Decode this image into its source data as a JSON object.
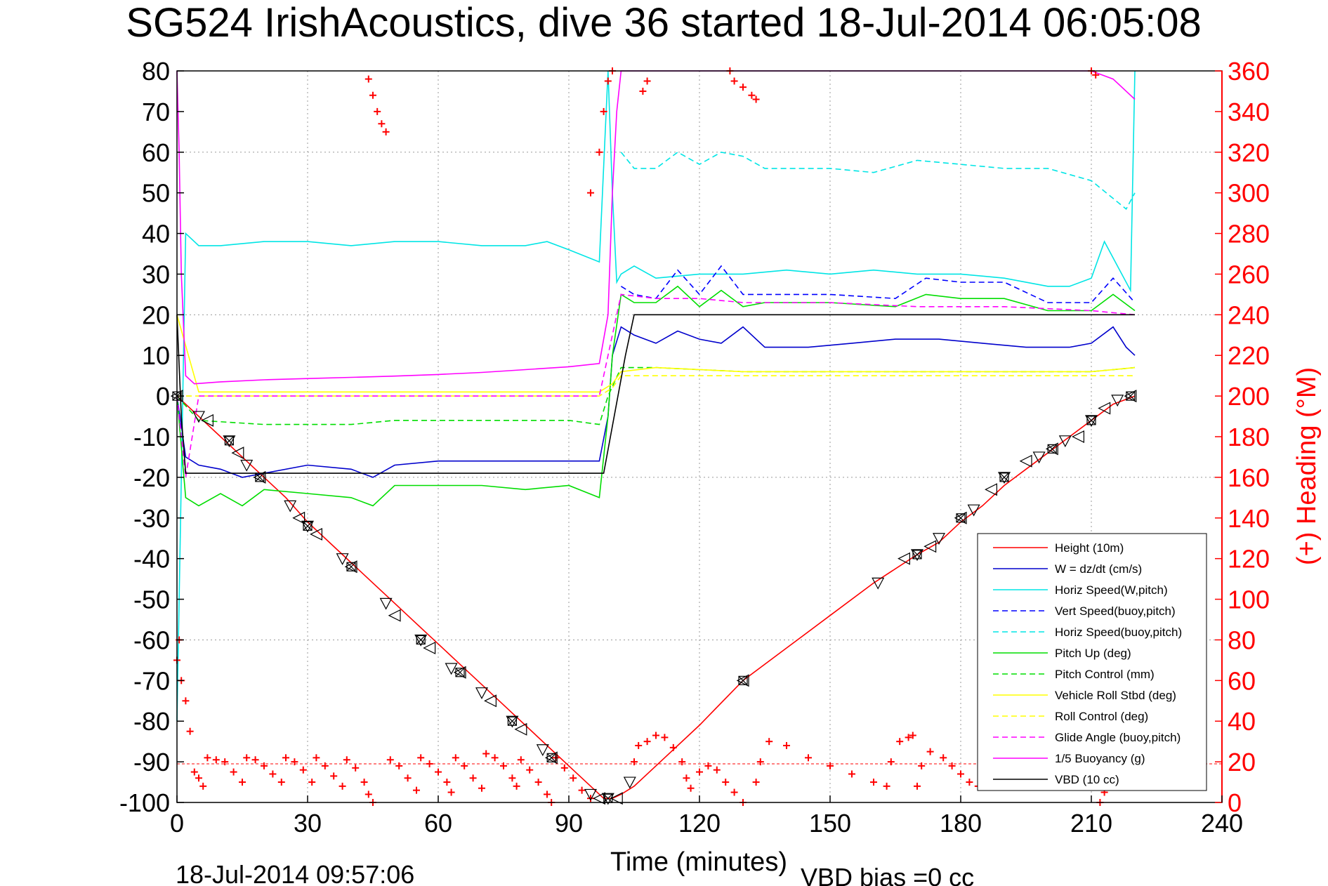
{
  "chart_data": {
    "type": "line",
    "title": "SG524 IrishAcoustics, dive 36 started 18-Jul-2014 06:05:08",
    "xlabel": "Time (minutes)",
    "ylabel_right": "(+) Heading (°M)",
    "xlim": [
      0,
      240
    ],
    "ylim_left": [
      -100,
      80
    ],
    "ylim_right": [
      0,
      360
    ],
    "xticks": [
      0,
      30,
      60,
      90,
      120,
      150,
      180,
      210,
      240
    ],
    "yticks_left": [
      80,
      70,
      60,
      50,
      40,
      30,
      20,
      10,
      0,
      -10,
      -20,
      -30,
      -40,
      -50,
      -60,
      -70,
      -80,
      -90,
      -100
    ],
    "yticks_right": [
      360,
      340,
      320,
      300,
      280,
      260,
      240,
      220,
      200,
      180,
      160,
      140,
      120,
      100,
      80,
      60,
      40,
      20,
      0
    ],
    "grid": true,
    "legend_position": "lower-right",
    "reference_line_y": -90.5,
    "footer_left": "18-Jul-2014 09:57:06",
    "footer_right": "VBD bias =0 cc",
    "colors": {
      "red": "#ff0000",
      "blue": "#0000cc",
      "cyan": "#00e5e5",
      "green": "#00dd00",
      "yellow": "#ffff00",
      "magenta": "#ff00ff",
      "black": "#000000"
    },
    "series": [
      {
        "name": "Height (10m)",
        "color": "#ff0000",
        "style": "solid",
        "x": [
          0,
          5,
          10,
          15,
          20,
          25,
          30,
          35,
          40,
          45,
          50,
          55,
          60,
          65,
          70,
          75,
          80,
          85,
          90,
          95,
          98,
          100,
          102,
          105,
          110,
          120,
          130,
          140,
          150,
          160,
          170,
          175,
          180,
          185,
          190,
          195,
          200,
          205,
          210,
          215,
          220
        ],
        "y": [
          0,
          -5,
          -10,
          -15,
          -20,
          -25,
          -31,
          -36,
          -41,
          -46,
          -51,
          -56,
          -61,
          -66,
          -71,
          -76,
          -81,
          -86,
          -91,
          -96,
          -99,
          -99,
          -98,
          -96,
          -91,
          -81,
          -70,
          -62,
          -54,
          -46,
          -39,
          -36,
          -31,
          -27,
          -22,
          -18,
          -14,
          -10,
          -6,
          -2,
          0
        ]
      },
      {
        "name": "W = dz/dt (cm/s)",
        "color": "#0000cc",
        "style": "solid",
        "x": [
          0,
          2,
          5,
          10,
          15,
          20,
          30,
          40,
          45,
          50,
          60,
          70,
          80,
          90,
          97,
          99,
          100,
          102,
          105,
          110,
          115,
          120,
          125,
          130,
          135,
          145,
          155,
          165,
          175,
          185,
          195,
          205,
          210,
          215,
          218,
          220
        ],
        "y": [
          0,
          -15,
          -17,
          -18,
          -20,
          -19,
          -17,
          -18,
          -20,
          -17,
          -16,
          -16,
          -16,
          -16,
          -16,
          -5,
          10,
          17,
          15,
          13,
          16,
          14,
          13,
          17,
          12,
          12,
          13,
          14,
          14,
          13,
          12,
          12,
          13,
          17,
          12,
          10
        ]
      },
      {
        "name": "Horiz Speed(W,pitch)",
        "color": "#00e5e5",
        "style": "solid",
        "x": [
          0,
          2,
          5,
          10,
          20,
          30,
          40,
          50,
          60,
          70,
          80,
          85,
          90,
          97,
          99,
          100,
          101,
          102,
          105,
          110,
          120,
          130,
          140,
          150,
          160,
          170,
          180,
          190,
          200,
          205,
          210,
          213,
          216,
          219,
          220
        ],
        "y": [
          -80,
          40,
          37,
          37,
          38,
          38,
          37,
          38,
          38,
          37,
          37,
          38,
          36,
          33,
          80,
          50,
          28,
          30,
          32,
          29,
          30,
          30,
          31,
          30,
          31,
          30,
          30,
          29,
          27,
          27,
          29,
          38,
          32,
          26,
          80
        ]
      },
      {
        "name": "Vert Speed(buoy,pitch)",
        "color": "#0000ff",
        "style": "dashed",
        "x": [
          102,
          105,
          110,
          115,
          120,
          125,
          130,
          135,
          150,
          165,
          172,
          180,
          190,
          200,
          210,
          215,
          220
        ],
        "y": [
          27,
          25,
          24,
          31,
          25,
          32,
          25,
          25,
          25,
          24,
          29,
          28,
          28,
          23,
          23,
          29,
          23
        ]
      },
      {
        "name": "Horiz Speed(buoy,pitch)",
        "color": "#00e5e5",
        "style": "dashed",
        "x": [
          102,
          105,
          110,
          115,
          120,
          125,
          130,
          135,
          150,
          160,
          170,
          180,
          190,
          200,
          210,
          218,
          220
        ],
        "y": [
          60,
          56,
          56,
          60,
          57,
          60,
          59,
          56,
          56,
          55,
          58,
          57,
          56,
          56,
          53,
          46,
          50
        ]
      },
      {
        "name": "Pitch Up (deg)",
        "color": "#00dd00",
        "style": "solid",
        "x": [
          0,
          2,
          5,
          10,
          15,
          20,
          30,
          40,
          45,
          50,
          60,
          70,
          80,
          90,
          97,
          99,
          100,
          102,
          105,
          110,
          115,
          120,
          125,
          130,
          135,
          150,
          165,
          172,
          180,
          190,
          200,
          210,
          215,
          220
        ],
        "y": [
          0,
          -25,
          -27,
          -24,
          -27,
          -23,
          -24,
          -25,
          -27,
          -22,
          -22,
          -22,
          -23,
          -22,
          -25,
          -5,
          10,
          25,
          23,
          23,
          27,
          22,
          26,
          22,
          23,
          23,
          22,
          25,
          24,
          24,
          21,
          21,
          25,
          21
        ]
      },
      {
        "name": "Pitch Control (mm)",
        "color": "#00dd00",
        "style": "dashed",
        "x": [
          0,
          5,
          20,
          40,
          50,
          60,
          70,
          80,
          90,
          97,
          99,
          102,
          110,
          130,
          150,
          170,
          190,
          210,
          220
        ],
        "y": [
          0,
          -6,
          -7,
          -7,
          -6,
          -6,
          -6,
          -6,
          -6,
          -7,
          0,
          7,
          7,
          6,
          6,
          6,
          6,
          6,
          7
        ]
      },
      {
        "name": "Vehicle Roll Stbd (deg)",
        "color": "#ffff00",
        "style": "solid",
        "x": [
          0,
          5,
          10,
          20,
          40,
          60,
          80,
          97,
          100,
          102,
          110,
          130,
          150,
          170,
          190,
          210,
          220
        ],
        "y": [
          20,
          1,
          1,
          1,
          1,
          1,
          1,
          1,
          3,
          6,
          7,
          6,
          6,
          6,
          6,
          6,
          7
        ]
      },
      {
        "name": "Roll Control (deg)",
        "color": "#ffff00",
        "style": "dashed",
        "x": [
          0,
          10,
          20,
          40,
          60,
          80,
          97,
          100,
          102,
          110,
          130,
          150,
          170,
          190,
          210,
          220
        ],
        "y": [
          0,
          0,
          0,
          0,
          0,
          0,
          0,
          2,
          5,
          5,
          5,
          5,
          5,
          5,
          5,
          5
        ]
      },
      {
        "name": "Glide Angle (buoy,pitch)",
        "color": "#ff00ff",
        "style": "dashed",
        "x": [
          0,
          2,
          5,
          20,
          40,
          60,
          80,
          97,
          99,
          102,
          110,
          120,
          130,
          150,
          170,
          190,
          210,
          220
        ],
        "y": [
          0,
          -20,
          0,
          0,
          0,
          0,
          0,
          0,
          10,
          25,
          24,
          24,
          23,
          23,
          22,
          22,
          21,
          20
        ]
      },
      {
        "name": "1/5 Buoyancy (g)",
        "color": "#ff00ff",
        "style": "solid",
        "x": [
          0,
          0.5,
          1,
          2,
          4,
          10,
          20,
          30,
          40,
          50,
          60,
          70,
          80,
          90,
          97,
          99,
          100,
          101,
          102,
          104,
          106,
          110,
          150,
          200,
          210,
          215,
          218,
          220
        ],
        "y": [
          80,
          60,
          30,
          5,
          3,
          3.5,
          4,
          4.3,
          4.6,
          4.9,
          5.3,
          5.8,
          6.5,
          7.2,
          8,
          20,
          50,
          70,
          80,
          80,
          80,
          80,
          80,
          80,
          80,
          78,
          75,
          73
        ]
      },
      {
        "name": "VBD (10 cc)",
        "color": "#000000",
        "style": "solid",
        "x": [
          0,
          1,
          2,
          98,
          103,
          105,
          220
        ],
        "y": [
          20,
          -5,
          -19,
          -19,
          10,
          20,
          20
        ]
      }
    ],
    "heading_series": {
      "name": "(+) Heading (°M)",
      "color": "#ff0000",
      "marker": "+",
      "axis": "right",
      "points": [
        [
          0,
          70
        ],
        [
          0.5,
          80
        ],
        [
          1,
          60
        ],
        [
          2,
          50
        ],
        [
          3,
          35
        ],
        [
          4,
          15
        ],
        [
          5,
          12
        ],
        [
          6,
          8
        ],
        [
          7,
          22
        ],
        [
          9,
          21
        ],
        [
          11,
          20
        ],
        [
          13,
          15
        ],
        [
          15,
          10
        ],
        [
          16,
          22
        ],
        [
          18,
          21
        ],
        [
          20,
          18
        ],
        [
          22,
          14
        ],
        [
          24,
          10
        ],
        [
          25,
          22
        ],
        [
          27,
          20
        ],
        [
          29,
          16
        ],
        [
          31,
          10
        ],
        [
          32,
          22
        ],
        [
          34,
          18
        ],
        [
          36,
          13
        ],
        [
          38,
          8
        ],
        [
          39,
          21
        ],
        [
          41,
          17
        ],
        [
          43,
          10
        ],
        [
          44,
          4
        ],
        [
          45,
          0
        ],
        [
          49,
          21
        ],
        [
          51,
          18
        ],
        [
          53,
          12
        ],
        [
          55,
          6
        ],
        [
          56,
          22
        ],
        [
          58,
          19
        ],
        [
          60,
          15
        ],
        [
          62,
          10
        ],
        [
          63,
          5
        ],
        [
          64,
          22
        ],
        [
          66,
          18
        ],
        [
          68,
          12
        ],
        [
          70,
          7
        ],
        [
          71,
          24
        ],
        [
          73,
          22
        ],
        [
          75,
          18
        ],
        [
          77,
          12
        ],
        [
          78,
          8
        ],
        [
          79,
          21
        ],
        [
          81,
          16
        ],
        [
          83,
          10
        ],
        [
          85,
          4
        ],
        [
          86,
          0
        ],
        [
          87,
          22
        ],
        [
          89,
          17
        ],
        [
          91,
          12
        ],
        [
          93,
          6
        ],
        [
          95,
          2
        ],
        [
          105,
          20
        ],
        [
          106,
          28
        ],
        [
          108,
          30
        ],
        [
          110,
          33
        ],
        [
          112,
          32
        ],
        [
          114,
          27
        ],
        [
          116,
          20
        ],
        [
          117,
          12
        ],
        [
          118,
          7
        ],
        [
          120,
          15
        ],
        [
          122,
          18
        ],
        [
          124,
          16
        ],
        [
          126,
          10
        ],
        [
          128,
          5
        ],
        [
          130,
          0
        ],
        [
          133,
          10
        ],
        [
          134,
          20
        ],
        [
          136,
          30
        ],
        [
          140,
          28
        ],
        [
          145,
          22
        ],
        [
          150,
          18
        ],
        [
          155,
          14
        ],
        [
          160,
          10
        ],
        [
          163,
          8
        ],
        [
          164,
          20
        ],
        [
          166,
          30
        ],
        [
          168,
          32
        ],
        [
          169,
          33
        ],
        [
          170,
          8
        ],
        [
          171,
          18
        ],
        [
          173,
          25
        ],
        [
          176,
          22
        ],
        [
          178,
          18
        ],
        [
          180,
          14
        ],
        [
          182,
          10
        ],
        [
          184,
          8
        ],
        [
          186,
          12
        ],
        [
          212,
          0
        ],
        [
          213,
          5
        ],
        [
          214,
          10
        ],
        [
          215,
          20
        ],
        [
          216,
          30
        ],
        [
          218,
          25
        ],
        [
          44,
          356
        ],
        [
          45,
          348
        ],
        [
          46,
          340
        ],
        [
          47,
          334
        ],
        [
          48,
          330
        ],
        [
          95,
          300
        ],
        [
          97,
          320
        ],
        [
          98,
          340
        ],
        [
          99,
          355
        ],
        [
          100,
          360
        ],
        [
          107,
          350
        ],
        [
          108,
          355
        ],
        [
          127,
          360
        ],
        [
          128,
          355
        ],
        [
          130,
          352
        ],
        [
          132,
          348
        ],
        [
          133,
          346
        ],
        [
          210,
          360
        ],
        [
          211,
          358
        ]
      ]
    },
    "waypoint_markers": {
      "markers": [
        "triangle-left",
        "triangle-down",
        "star",
        "x-square"
      ],
      "points": [
        [
          0,
          0
        ],
        [
          5,
          -5
        ],
        [
          7,
          -6
        ],
        [
          12,
          -11
        ],
        [
          14,
          -14
        ],
        [
          16,
          -17
        ],
        [
          19,
          -20
        ],
        [
          26,
          -27
        ],
        [
          28,
          -30
        ],
        [
          30,
          -32
        ],
        [
          32,
          -34
        ],
        [
          38,
          -40
        ],
        [
          40,
          -42
        ],
        [
          48,
          -51
        ],
        [
          50,
          -54
        ],
        [
          56,
          -60
        ],
        [
          58,
          -62
        ],
        [
          63,
          -67
        ],
        [
          65,
          -68
        ],
        [
          70,
          -73
        ],
        [
          72,
          -75
        ],
        [
          77,
          -80
        ],
        [
          79,
          -82
        ],
        [
          84,
          -87
        ],
        [
          86,
          -89
        ],
        [
          95,
          -98
        ],
        [
          97,
          -99
        ],
        [
          99,
          -99
        ],
        [
          101,
          -99
        ],
        [
          104,
          -95
        ],
        [
          130,
          -70
        ],
        [
          161,
          -46
        ],
        [
          167,
          -40
        ],
        [
          170,
          -39
        ],
        [
          173,
          -37
        ],
        [
          175,
          -35
        ],
        [
          180,
          -30
        ],
        [
          183,
          -28
        ],
        [
          187,
          -23
        ],
        [
          190,
          -20
        ],
        [
          195,
          -16
        ],
        [
          198,
          -15
        ],
        [
          201,
          -13
        ],
        [
          204,
          -11
        ],
        [
          207,
          -10
        ],
        [
          210,
          -6
        ],
        [
          213,
          -3
        ],
        [
          216,
          -1
        ],
        [
          219,
          0
        ]
      ]
    }
  }
}
